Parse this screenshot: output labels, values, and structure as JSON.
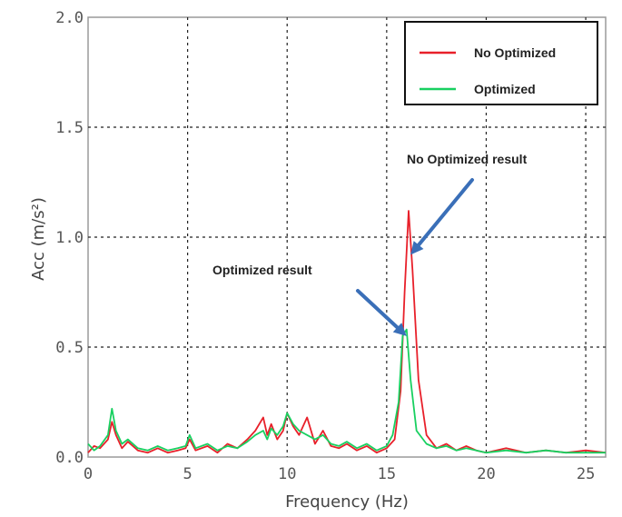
{
  "chart_data": {
    "type": "line",
    "xlabel": "Frequency (Hz)",
    "ylabel": "Acc (m/s²)",
    "xlim": [
      0,
      26
    ],
    "ylim": [
      0,
      2.0
    ],
    "x_ticks": [
      "0",
      "5",
      "10",
      "15",
      "20",
      "25"
    ],
    "y_ticks": [
      "0.0",
      "0.5",
      "1.0",
      "1.5",
      "2.0"
    ],
    "grid": true,
    "legend_position": "top-right",
    "colors": {
      "No Optimized": "#e8202a",
      "Optimized": "#18d060",
      "arrow": "#3a6fb8"
    },
    "series": [
      {
        "name": "No Optimized",
        "x": [
          0,
          0.3,
          0.6,
          1.0,
          1.2,
          1.4,
          1.7,
          2.0,
          2.5,
          3.0,
          3.5,
          4.0,
          4.5,
          4.9,
          5.1,
          5.4,
          6.0,
          6.5,
          7.0,
          7.5,
          8.0,
          8.4,
          8.8,
          9.0,
          9.2,
          9.5,
          9.8,
          10.0,
          10.3,
          10.6,
          11.0,
          11.4,
          11.8,
          12.2,
          12.6,
          13.0,
          13.5,
          14.0,
          14.5,
          15.0,
          15.4,
          15.7,
          15.9,
          16.1,
          16.3,
          16.6,
          17.0,
          17.5,
          18.0,
          18.5,
          19.0,
          19.5,
          20.0,
          21.0,
          22.0,
          23.0,
          24.0,
          25.0,
          26.0
        ],
        "y": [
          0.02,
          0.05,
          0.04,
          0.08,
          0.16,
          0.1,
          0.04,
          0.07,
          0.03,
          0.02,
          0.04,
          0.02,
          0.03,
          0.04,
          0.08,
          0.03,
          0.05,
          0.02,
          0.06,
          0.04,
          0.08,
          0.12,
          0.18,
          0.1,
          0.15,
          0.08,
          0.12,
          0.2,
          0.14,
          0.1,
          0.18,
          0.06,
          0.12,
          0.05,
          0.04,
          0.06,
          0.03,
          0.05,
          0.02,
          0.04,
          0.08,
          0.3,
          0.75,
          1.12,
          0.85,
          0.35,
          0.1,
          0.04,
          0.06,
          0.03,
          0.05,
          0.03,
          0.02,
          0.04,
          0.02,
          0.03,
          0.02,
          0.03,
          0.02
        ]
      },
      {
        "name": "Optimized",
        "x": [
          0,
          0.3,
          0.6,
          1.0,
          1.2,
          1.4,
          1.7,
          2.0,
          2.5,
          3.0,
          3.5,
          4.0,
          4.5,
          4.9,
          5.1,
          5.4,
          6.0,
          6.5,
          7.0,
          7.5,
          8.0,
          8.4,
          8.8,
          9.0,
          9.2,
          9.5,
          9.8,
          10.0,
          10.3,
          10.6,
          11.0,
          11.4,
          11.8,
          12.2,
          12.6,
          13.0,
          13.5,
          14.0,
          14.5,
          15.0,
          15.3,
          15.6,
          15.8,
          16.0,
          16.2,
          16.5,
          17.0,
          17.5,
          18.0,
          18.5,
          19.0,
          19.5,
          20.0,
          21.0,
          22.0,
          23.0,
          24.0,
          25.0,
          26.0
        ],
        "y": [
          0.06,
          0.03,
          0.05,
          0.1,
          0.22,
          0.12,
          0.06,
          0.08,
          0.04,
          0.03,
          0.05,
          0.03,
          0.04,
          0.05,
          0.1,
          0.04,
          0.06,
          0.03,
          0.05,
          0.04,
          0.07,
          0.1,
          0.12,
          0.08,
          0.13,
          0.1,
          0.14,
          0.2,
          0.15,
          0.12,
          0.1,
          0.08,
          0.1,
          0.06,
          0.05,
          0.07,
          0.04,
          0.06,
          0.03,
          0.05,
          0.1,
          0.25,
          0.55,
          0.58,
          0.35,
          0.12,
          0.06,
          0.04,
          0.05,
          0.03,
          0.04,
          0.03,
          0.02,
          0.03,
          0.02,
          0.03,
          0.02,
          0.02,
          0.02
        ]
      }
    ],
    "annotations": [
      {
        "text": "No Optimized result",
        "arrow_tip": [
          16.2,
          0.92
        ]
      },
      {
        "text": "Optimized result",
        "arrow_tip": [
          16.0,
          0.55
        ]
      }
    ]
  }
}
